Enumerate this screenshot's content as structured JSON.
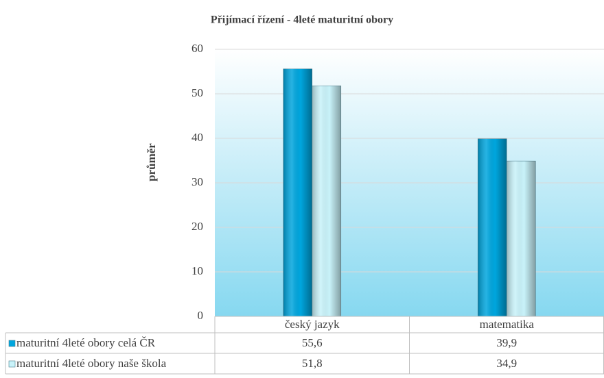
{
  "chart_data": {
    "type": "bar",
    "title": "Přijímací řízení - 4leté maturitní obory",
    "y_label": "průměr",
    "categories": [
      "český jazyk",
      "matematika"
    ],
    "series": [
      {
        "name": "maturitní 4leté obory celá ČR",
        "color": "#00a6de",
        "values": [
          55.6,
          39.9
        ],
        "value_labels": [
          "55,6",
          "39,9"
        ]
      },
      {
        "name": "maturitní 4leté obory naše škola",
        "color": "#c9f3fa",
        "values": [
          51.8,
          34.9
        ],
        "value_labels": [
          "51,8",
          "34,9"
        ]
      }
    ],
    "ylim": [
      0,
      60
    ],
    "yticks": [
      0,
      10,
      20,
      30,
      40,
      50,
      60
    ],
    "grid": true
  }
}
